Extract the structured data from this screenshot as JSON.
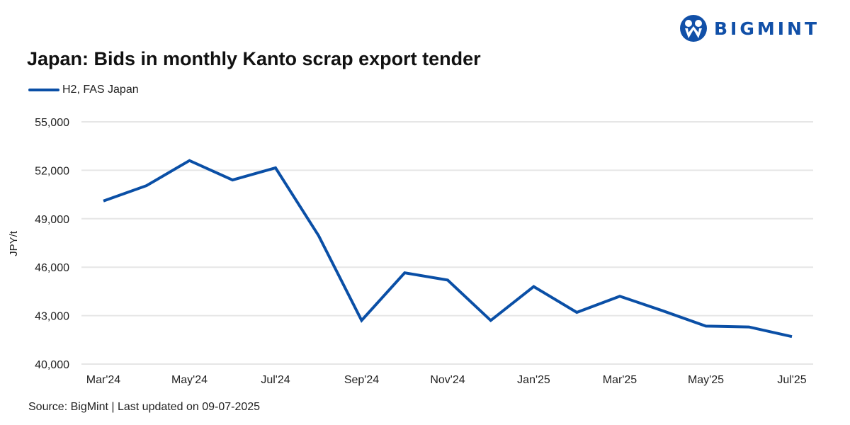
{
  "brand": {
    "name": "BIGMINT",
    "logo_icon": "bigmint-people-icon",
    "color": "#1150a8"
  },
  "chart_data": {
    "type": "line",
    "title": "Japan: Bids in monthly Kanto scrap export tender",
    "xlabel": "",
    "ylabel": "JPY/t",
    "ylim": [
      40000,
      55000
    ],
    "y_ticks": [
      40000,
      43000,
      46000,
      49000,
      52000,
      55000
    ],
    "y_tick_labels": [
      "40,000",
      "43,000",
      "46,000",
      "49,000",
      "52,000",
      "55,000"
    ],
    "x_tick_labels": [
      "Mar'24",
      "May'24",
      "Jul'24",
      "Sep'24",
      "Nov'24",
      "Jan'25",
      "Mar'25",
      "May'25",
      "Jul'25"
    ],
    "categories": [
      "Mar'24",
      "Apr'24",
      "May'24",
      "Jun'24",
      "Jul'24",
      "Aug'24",
      "Sep'24",
      "Oct'24",
      "Nov'24",
      "Dec'24",
      "Jan'25",
      "Feb'25",
      "Mar'25",
      "Apr'25",
      "May'25",
      "Jun'25",
      "Jul'25"
    ],
    "series": [
      {
        "name": "H2, FAS Japan",
        "color": "#0a4fa6",
        "values": [
          50100,
          51050,
          52600,
          51400,
          52150,
          47950,
          42700,
          45650,
          45200,
          42700,
          44800,
          43200,
          44200,
          43300,
          42350,
          42300,
          41700
        ]
      }
    ],
    "grid": true,
    "legend_position": "top-left"
  },
  "legend": {
    "label": "H2, FAS Japan"
  },
  "footer": {
    "source": "Source: BigMint | Last updated on 09-07-2025"
  }
}
